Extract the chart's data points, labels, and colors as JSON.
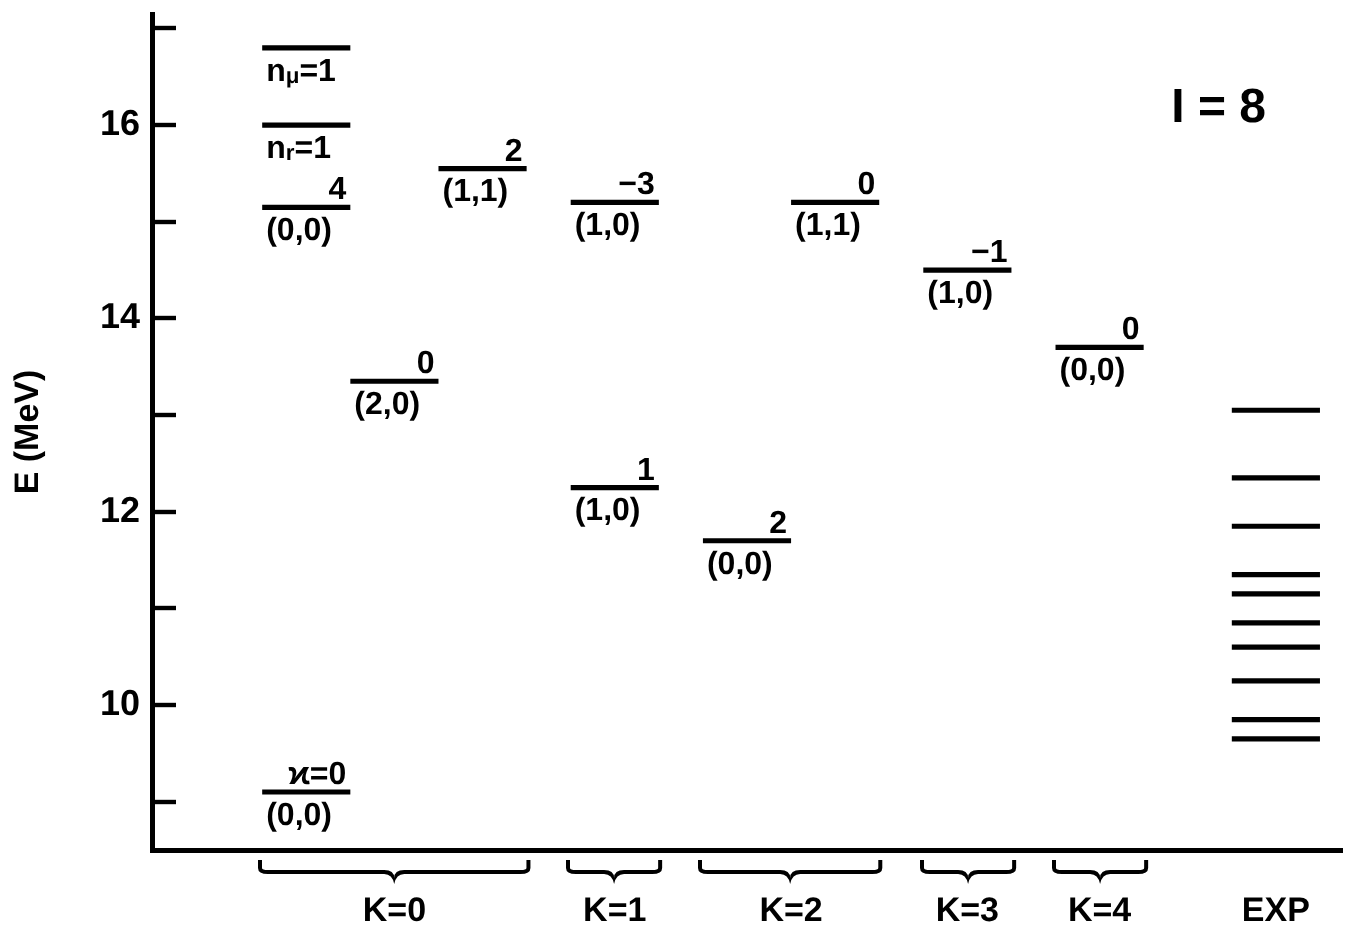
{
  "chart_data": {
    "type": "line",
    "ylabel": "E (MeV)",
    "marker": "none",
    "categories": [
      null,
      null,
      null,
      null,
      null,
      "K=0",
      null,
      null,
      null,
      null,
      "K=1",
      null,
      null,
      null,
      "K=2",
      null,
      null,
      null,
      "K=3",
      null,
      null,
      "K=4",
      null,
      null,
      null,
      "EXP",
      null
    ],
    "series": [
      {
        "color": "#000000",
        "values": [
          null,
          null,
          16.8,
          16.8,
          16.8,
          null,
          15.55,
          15.55,
          15.55,
          null,
          null,
          null,
          11.7,
          11.7,
          11.7,
          null,
          null,
          14.5,
          14.5,
          14.5,
          null,
          null,
          null,
          null,
          13.05,
          13.05,
          13.05
        ]
      },
      {
        "color": "#000000",
        "values": [
          null,
          null,
          16,
          16,
          16,
          null,
          null,
          null,
          null,
          null,
          null,
          null,
          null,
          null,
          null,
          null,
          null,
          null,
          null,
          null,
          null,
          null,
          null,
          null,
          12.35,
          12.35,
          12.35
        ]
      },
      {
        "color": "#000000",
        "values": [
          null,
          null,
          15.15,
          15.15,
          15.15,
          null,
          null,
          null,
          null,
          null,
          null,
          null,
          null,
          null,
          null,
          null,
          null,
          null,
          null,
          null,
          null,
          null,
          null,
          null,
          11.85,
          11.85,
          11.85
        ]
      },
      {
        "color": "#000000",
        "values": [
          null,
          null,
          9.1,
          9.1,
          9.1,
          null,
          null,
          null,
          null,
          null,
          null,
          null,
          null,
          null,
          null,
          null,
          null,
          null,
          null,
          null,
          null,
          null,
          null,
          null,
          11.35,
          11.35,
          11.35
        ]
      },
      {
        "color": "#000000",
        "values": [
          null,
          null,
          null,
          null,
          null,
          null,
          null,
          null,
          null,
          12.25,
          12.25,
          12.25,
          null,
          null,
          null,
          null,
          null,
          null,
          null,
          null,
          null,
          null,
          null,
          null,
          11.15,
          11.15,
          11.15
        ]
      },
      {
        "color": "#000000",
        "values": [
          null,
          null,
          null,
          null,
          13.35,
          13.35,
          13.35,
          null,
          null,
          15.2,
          15.2,
          15.2,
          null,
          null,
          15.2,
          15.2,
          15.2,
          null,
          null,
          null,
          13.7,
          13.7,
          13.7,
          null,
          10.85,
          10.85,
          10.85
        ]
      },
      {
        "color": "#000000",
        "values": [
          null,
          null,
          null,
          null,
          null,
          null,
          null,
          null,
          null,
          null,
          null,
          null,
          null,
          null,
          null,
          null,
          null,
          null,
          null,
          null,
          null,
          null,
          null,
          null,
          10.6,
          10.6,
          10.6
        ]
      },
      {
        "color": "#000000",
        "values": [
          null,
          null,
          null,
          null,
          null,
          null,
          null,
          null,
          null,
          null,
          null,
          null,
          null,
          null,
          null,
          null,
          null,
          null,
          null,
          null,
          null,
          null,
          null,
          null,
          10.25,
          10.25,
          10.25
        ]
      },
      {
        "color": "#000000",
        "values": [
          null,
          null,
          null,
          null,
          null,
          null,
          null,
          null,
          null,
          null,
          null,
          null,
          null,
          null,
          null,
          null,
          null,
          null,
          null,
          null,
          null,
          null,
          null,
          null,
          9.85,
          9.85,
          9.85
        ]
      },
      {
        "color": "#000000",
        "values": [
          null,
          null,
          null,
          null,
          null,
          null,
          null,
          null,
          null,
          null,
          null,
          null,
          null,
          null,
          null,
          null,
          null,
          null,
          null,
          null,
          null,
          null,
          null,
          null,
          9.65,
          9.65,
          9.65
        ]
      }
    ],
    "ylim": [
      8.5,
      17.15
    ],
    "yticks": [
      {
        "value": 9,
        "label": null
      },
      10,
      {
        "value": 11,
        "label": null
      },
      12,
      {
        "value": 13,
        "label": null
      },
      14,
      {
        "value": 15,
        "label": null
      },
      16,
      {
        "value": 17,
        "label": null
      }
    ],
    "annotations": [
      {
        "text": "n$_{μ}$=1",
        "y": 16.8
      },
      {
        "text": "n$_{r}$=1",
        "y": 16
      },
      {
        "text": "4",
        "y": 15.15
      },
      {
        "text": "(0,0)",
        "y": 15.15
      },
      {
        "text": "ϰ=0",
        "y": 9.1
      },
      {
        "text": "(0,0)",
        "y": 9.1
      },
      {
        "text": "0",
        "x": "K=0",
        "y": 13.35
      },
      {
        "text": "(2,0)",
        "x": "K=0",
        "y": 13.35
      },
      {
        "text": "2",
        "y": 15.55
      },
      {
        "text": "(1,1)",
        "y": 15.55
      },
      {
        "text": "−3",
        "x": "K=1",
        "y": 15.2
      },
      {
        "text": "(1,0)",
        "x": "K=1",
        "y": 15.2
      },
      {
        "text": "1",
        "x": "K=1",
        "y": 12.25
      },
      {
        "text": "(1,0)",
        "x": "K=1",
        "y": 12.25
      },
      {
        "text": "2",
        "x": "K=2",
        "y": 11.7
      },
      {
        "text": "(0,0)",
        "x": "K=2",
        "y": 11.7
      },
      {
        "text": "0",
        "x": "K=2",
        "y": 15.2
      },
      {
        "text": "(1,1)",
        "x": "K=2",
        "y": 15.2
      },
      {
        "text": "−1",
        "x": "K=3",
        "y": 14.5
      },
      {
        "text": "(1,0)",
        "x": "K=3",
        "y": 14.5
      },
      {
        "text": "0",
        "x": "K=4",
        "y": 13.7
      },
      {
        "text": "(0,0)",
        "x": "K=4",
        "y": 13.7
      },
      "I = 8"
    ]
  }
}
